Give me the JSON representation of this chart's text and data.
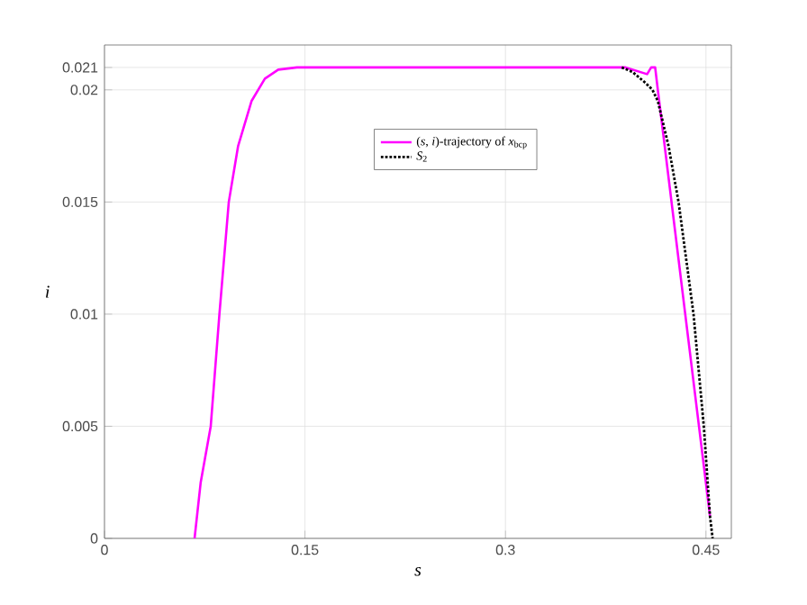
{
  "chart_data": {
    "type": "line",
    "xlabel": "s",
    "ylabel": "i",
    "xlim": [
      0,
      0.469
    ],
    "ylim": [
      0,
      0.022
    ],
    "xticks": [
      0,
      0.15,
      0.3,
      0.45
    ],
    "yticks": [
      0,
      0.005,
      0.01,
      0.015,
      0.02,
      0.021
    ],
    "grid": true,
    "legend": "top",
    "marker": "none",
    "series": [
      {
        "name": "(*s*, *i*)-trajectory of *x*$_{bcp}$",
        "color": "#ff00ff",
        "line_style": "solid",
        "x": [
          0.0674,
          0.072,
          0.0795,
          0.086,
          0.093,
          0.1,
          0.11,
          0.12,
          0.13,
          0.144,
          0.39,
          0.406,
          0.409,
          0.412,
          0.414,
          0.4345,
          0.453
        ],
        "values": [
          0,
          0.0025,
          0.005,
          0.01,
          0.015,
          0.0175,
          0.0195,
          0.0205,
          0.0209,
          0.021,
          0.021,
          0.0207,
          0.021,
          0.021,
          0.02,
          0.01,
          0.001
        ]
      },
      {
        "name": "*S*$_{2}$",
        "color": "#000000",
        "line_style": "dotted",
        "x": [
          0.387,
          0.395,
          0.405,
          0.41,
          0.414,
          0.422,
          0.4295,
          0.4407,
          0.4484,
          0.453,
          0.455
        ],
        "values": [
          0.021,
          0.0208,
          0.0203,
          0.02,
          0.0195,
          0.0175,
          0.015,
          0.01,
          0.005,
          0.001,
          0
        ]
      }
    ]
  }
}
